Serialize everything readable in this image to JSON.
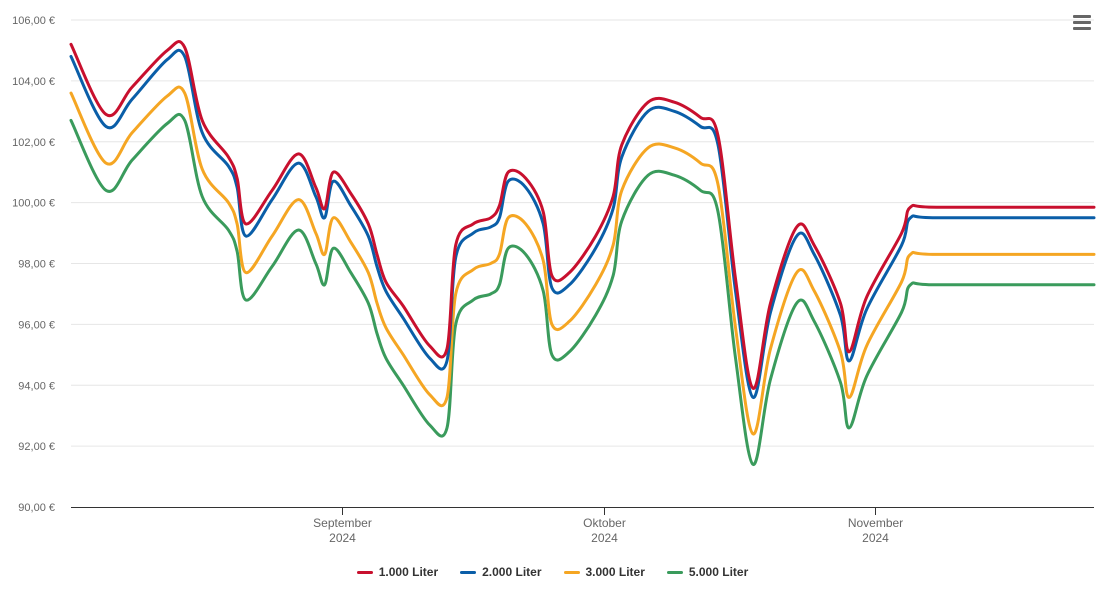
{
  "chart_data": {
    "type": "line",
    "y_ticks": [
      "90,00 €",
      "92,00 €",
      "94,00 €",
      "96,00 €",
      "98,00 €",
      "100,00 €",
      "102,00 €",
      "104,00 €",
      "106,00 €"
    ],
    "ylim": [
      90,
      106
    ],
    "x_range": [
      "2024-08-01",
      "2024-11-26"
    ],
    "x_ticks": [
      {
        "date": "2024-09-01",
        "line1": "September",
        "line2": "2024"
      },
      {
        "date": "2024-10-01",
        "line1": "Oktober",
        "line2": "2024"
      },
      {
        "date": "2024-11-01",
        "line1": "November",
        "line2": "2024"
      }
    ],
    "grid": true,
    "legend_position": "bottom-center",
    "series": [
      {
        "name": "1.000 Liter",
        "color": "#c8102e",
        "points": [
          [
            "2024-08-01",
            105.2
          ],
          [
            "2024-08-05",
            102.9
          ],
          [
            "2024-08-08",
            103.8
          ],
          [
            "2024-08-12",
            105.0
          ],
          [
            "2024-08-14",
            105.1
          ],
          [
            "2024-08-16",
            102.7
          ],
          [
            "2024-08-19",
            101.5
          ],
          [
            "2024-08-20",
            100.8
          ],
          [
            "2024-08-21",
            99.3
          ],
          [
            "2024-08-24",
            100.4
          ],
          [
            "2024-08-27",
            101.6
          ],
          [
            "2024-08-29",
            100.5
          ],
          [
            "2024-08-30",
            99.8
          ],
          [
            "2024-08-31",
            101.0
          ],
          [
            "2024-09-02",
            100.3
          ],
          [
            "2024-09-04",
            99.3
          ],
          [
            "2024-09-05",
            98.3
          ],
          [
            "2024-09-06",
            97.4
          ],
          [
            "2024-09-08",
            96.6
          ],
          [
            "2024-09-11",
            95.3
          ],
          [
            "2024-09-13",
            95.2
          ],
          [
            "2024-09-14",
            98.6
          ],
          [
            "2024-09-16",
            99.3
          ],
          [
            "2024-09-18",
            99.5
          ],
          [
            "2024-09-19",
            99.9
          ],
          [
            "2024-09-20",
            101.0
          ],
          [
            "2024-09-22",
            100.8
          ],
          [
            "2024-09-24",
            99.7
          ],
          [
            "2024-09-25",
            97.6
          ],
          [
            "2024-09-27",
            97.7
          ],
          [
            "2024-09-30",
            98.9
          ],
          [
            "2024-10-02",
            100.2
          ],
          [
            "2024-10-03",
            101.9
          ],
          [
            "2024-10-06",
            103.3
          ],
          [
            "2024-10-09",
            103.3
          ],
          [
            "2024-10-12",
            102.8
          ],
          [
            "2024-10-14",
            102.2
          ],
          [
            "2024-10-16",
            97.5
          ],
          [
            "2024-10-18",
            93.9
          ],
          [
            "2024-10-20",
            96.7
          ],
          [
            "2024-10-23",
            99.2
          ],
          [
            "2024-10-25",
            98.6
          ],
          [
            "2024-10-28",
            96.7
          ],
          [
            "2024-10-29",
            95.1
          ],
          [
            "2024-10-31",
            96.9
          ],
          [
            "2024-11-04",
            99.0
          ],
          [
            "2024-11-05",
            99.85
          ],
          [
            "2024-11-08",
            99.85
          ],
          [
            "2024-11-26",
            99.85
          ]
        ]
      },
      {
        "name": "2.000 Liter",
        "color": "#0a5ea8",
        "points": [
          [
            "2024-08-01",
            104.8
          ],
          [
            "2024-08-05",
            102.5
          ],
          [
            "2024-08-08",
            103.4
          ],
          [
            "2024-08-12",
            104.7
          ],
          [
            "2024-08-14",
            104.8
          ],
          [
            "2024-08-16",
            102.3
          ],
          [
            "2024-08-19",
            101.2
          ],
          [
            "2024-08-20",
            100.5
          ],
          [
            "2024-08-21",
            98.9
          ],
          [
            "2024-08-24",
            100.1
          ],
          [
            "2024-08-27",
            101.3
          ],
          [
            "2024-08-29",
            100.2
          ],
          [
            "2024-08-30",
            99.5
          ],
          [
            "2024-08-31",
            100.7
          ],
          [
            "2024-09-02",
            99.9
          ],
          [
            "2024-09-04",
            98.9
          ],
          [
            "2024-09-05",
            97.9
          ],
          [
            "2024-09-06",
            97.1
          ],
          [
            "2024-09-08",
            96.2
          ],
          [
            "2024-09-11",
            94.9
          ],
          [
            "2024-09-13",
            94.8
          ],
          [
            "2024-09-14",
            98.2
          ],
          [
            "2024-09-16",
            99.0
          ],
          [
            "2024-09-18",
            99.2
          ],
          [
            "2024-09-19",
            99.5
          ],
          [
            "2024-09-20",
            100.7
          ],
          [
            "2024-09-22",
            100.5
          ],
          [
            "2024-09-24",
            99.3
          ],
          [
            "2024-09-25",
            97.2
          ],
          [
            "2024-09-27",
            97.3
          ],
          [
            "2024-09-30",
            98.5
          ],
          [
            "2024-10-02",
            99.8
          ],
          [
            "2024-10-03",
            101.5
          ],
          [
            "2024-10-06",
            103.0
          ],
          [
            "2024-10-09",
            103.0
          ],
          [
            "2024-10-12",
            102.5
          ],
          [
            "2024-10-14",
            101.9
          ],
          [
            "2024-10-16",
            97.1
          ],
          [
            "2024-10-18",
            93.6
          ],
          [
            "2024-10-20",
            96.4
          ],
          [
            "2024-10-23",
            98.9
          ],
          [
            "2024-10-25",
            98.3
          ],
          [
            "2024-10-28",
            96.3
          ],
          [
            "2024-10-29",
            94.8
          ],
          [
            "2024-10-31",
            96.5
          ],
          [
            "2024-11-04",
            98.6
          ],
          [
            "2024-11-05",
            99.5
          ],
          [
            "2024-11-08",
            99.5
          ],
          [
            "2024-11-26",
            99.5
          ]
        ]
      },
      {
        "name": "3.000 Liter",
        "color": "#f5a623",
        "points": [
          [
            "2024-08-01",
            103.6
          ],
          [
            "2024-08-05",
            101.3
          ],
          [
            "2024-08-08",
            102.3
          ],
          [
            "2024-08-12",
            103.5
          ],
          [
            "2024-08-14",
            103.6
          ],
          [
            "2024-08-16",
            101.1
          ],
          [
            "2024-08-19",
            100.0
          ],
          [
            "2024-08-20",
            99.3
          ],
          [
            "2024-08-21",
            97.7
          ],
          [
            "2024-08-24",
            98.9
          ],
          [
            "2024-08-27",
            100.1
          ],
          [
            "2024-08-29",
            99.0
          ],
          [
            "2024-08-30",
            98.3
          ],
          [
            "2024-08-31",
            99.5
          ],
          [
            "2024-09-02",
            98.7
          ],
          [
            "2024-09-04",
            97.7
          ],
          [
            "2024-09-05",
            96.7
          ],
          [
            "2024-09-06",
            95.9
          ],
          [
            "2024-09-08",
            95.0
          ],
          [
            "2024-09-11",
            93.7
          ],
          [
            "2024-09-13",
            93.6
          ],
          [
            "2024-09-14",
            97.0
          ],
          [
            "2024-09-16",
            97.8
          ],
          [
            "2024-09-18",
            98.0
          ],
          [
            "2024-09-19",
            98.3
          ],
          [
            "2024-09-20",
            99.5
          ],
          [
            "2024-09-22",
            99.3
          ],
          [
            "2024-09-24",
            98.1
          ],
          [
            "2024-09-25",
            96.0
          ],
          [
            "2024-09-27",
            96.1
          ],
          [
            "2024-09-30",
            97.3
          ],
          [
            "2024-10-02",
            98.6
          ],
          [
            "2024-10-03",
            100.4
          ],
          [
            "2024-10-06",
            101.8
          ],
          [
            "2024-10-09",
            101.8
          ],
          [
            "2024-10-12",
            101.3
          ],
          [
            "2024-10-14",
            100.6
          ],
          [
            "2024-10-16",
            95.9
          ],
          [
            "2024-10-18",
            92.4
          ],
          [
            "2024-10-20",
            95.2
          ],
          [
            "2024-10-23",
            97.7
          ],
          [
            "2024-10-25",
            97.1
          ],
          [
            "2024-10-28",
            95.1
          ],
          [
            "2024-10-29",
            93.6
          ],
          [
            "2024-10-31",
            95.3
          ],
          [
            "2024-11-04",
            97.4
          ],
          [
            "2024-11-05",
            98.3
          ],
          [
            "2024-11-08",
            98.3
          ],
          [
            "2024-11-26",
            98.3
          ]
        ]
      },
      {
        "name": "5.000 Liter",
        "color": "#3a9b5c",
        "points": [
          [
            "2024-08-01",
            102.7
          ],
          [
            "2024-08-05",
            100.4
          ],
          [
            "2024-08-08",
            101.4
          ],
          [
            "2024-08-12",
            102.6
          ],
          [
            "2024-08-14",
            102.7
          ],
          [
            "2024-08-16",
            100.2
          ],
          [
            "2024-08-19",
            99.1
          ],
          [
            "2024-08-20",
            98.4
          ],
          [
            "2024-08-21",
            96.8
          ],
          [
            "2024-08-24",
            97.9
          ],
          [
            "2024-08-27",
            99.1
          ],
          [
            "2024-08-29",
            98.0
          ],
          [
            "2024-08-30",
            97.3
          ],
          [
            "2024-08-31",
            98.5
          ],
          [
            "2024-09-02",
            97.7
          ],
          [
            "2024-09-04",
            96.7
          ],
          [
            "2024-09-05",
            95.7
          ],
          [
            "2024-09-06",
            94.9
          ],
          [
            "2024-09-08",
            94.0
          ],
          [
            "2024-09-11",
            92.7
          ],
          [
            "2024-09-13",
            92.6
          ],
          [
            "2024-09-14",
            96.0
          ],
          [
            "2024-09-16",
            96.8
          ],
          [
            "2024-09-18",
            97.0
          ],
          [
            "2024-09-19",
            97.3
          ],
          [
            "2024-09-20",
            98.5
          ],
          [
            "2024-09-22",
            98.3
          ],
          [
            "2024-09-24",
            97.1
          ],
          [
            "2024-09-25",
            95.0
          ],
          [
            "2024-09-27",
            95.1
          ],
          [
            "2024-09-30",
            96.3
          ],
          [
            "2024-10-02",
            97.6
          ],
          [
            "2024-10-03",
            99.4
          ],
          [
            "2024-10-06",
            100.9
          ],
          [
            "2024-10-09",
            100.9
          ],
          [
            "2024-10-12",
            100.4
          ],
          [
            "2024-10-14",
            99.7
          ],
          [
            "2024-10-16",
            94.9
          ],
          [
            "2024-10-18",
            91.4
          ],
          [
            "2024-10-20",
            94.2
          ],
          [
            "2024-10-23",
            96.7
          ],
          [
            "2024-10-25",
            96.1
          ],
          [
            "2024-10-28",
            94.1
          ],
          [
            "2024-10-29",
            92.6
          ],
          [
            "2024-10-31",
            94.3
          ],
          [
            "2024-11-04",
            96.4
          ],
          [
            "2024-11-05",
            97.3
          ],
          [
            "2024-11-08",
            97.3
          ],
          [
            "2024-11-26",
            97.3
          ]
        ]
      }
    ]
  },
  "menu": {
    "icon": "hamburger-menu-icon"
  }
}
